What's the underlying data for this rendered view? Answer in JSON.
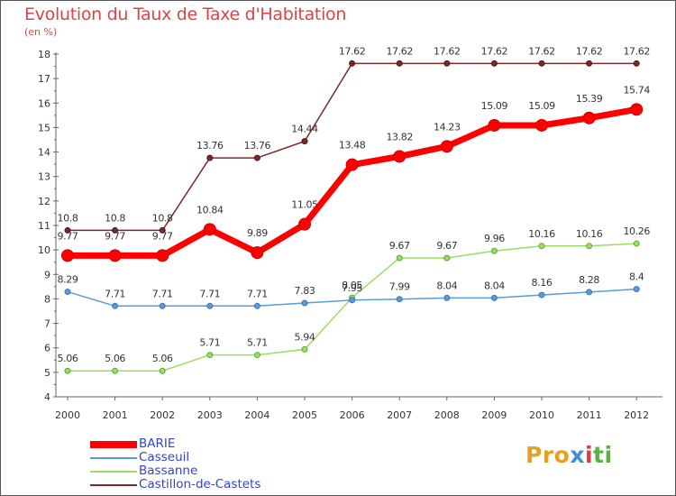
{
  "header": {
    "title": "Evolution du Taux de Taxe d'Habitation",
    "subtitle": "(en %)"
  },
  "logo": {
    "text": "Proxiti",
    "parts": [
      "Pro",
      "x",
      "i",
      "ti"
    ]
  },
  "chart_data": {
    "type": "line",
    "title": "Evolution du Taux de Taxe d'Habitation",
    "ylabel": "(en %)",
    "xlabel": "",
    "x": [
      "2000",
      "2001",
      "2002",
      "2003",
      "2004",
      "2005",
      "2006",
      "2007",
      "2008",
      "2009",
      "2010",
      "2011",
      "2012"
    ],
    "ylim": [
      4,
      18
    ],
    "yticks": [
      "4",
      "5",
      "6",
      "7",
      "8",
      "9",
      "10",
      "11",
      "12",
      "13",
      "14",
      "15",
      "16",
      "17",
      "18"
    ],
    "grid": false,
    "legend": "bottom-left",
    "series": [
      {
        "name": "BARIE",
        "color": "#ff0000",
        "values": [
          9.77,
          9.77,
          9.77,
          10.84,
          9.89,
          11.05,
          13.48,
          13.82,
          14.23,
          15.09,
          15.09,
          15.39,
          15.74
        ],
        "labels": [
          "9.77",
          "9.77",
          "9.77",
          "10.84",
          "9.89",
          "11.05",
          "13.48",
          "13.82",
          "14.23",
          "15.09",
          "15.09",
          "15.39",
          "15.74"
        ]
      },
      {
        "name": "Casseuil",
        "color": "#5b9bd5",
        "values": [
          8.29,
          7.71,
          7.71,
          7.71,
          7.71,
          7.83,
          7.95,
          7.99,
          8.04,
          8.04,
          8.16,
          8.28,
          8.4
        ],
        "labels": [
          "8.29",
          "7.71",
          "7.71",
          "7.71",
          "7.71",
          "7.83",
          "7.95",
          "7.99",
          "8.04",
          "8.04",
          "8.16",
          "8.28",
          "8.4"
        ]
      },
      {
        "name": "Bassanne",
        "color": "#99dd66",
        "values": [
          5.06,
          5.06,
          5.06,
          5.71,
          5.71,
          5.94,
          8.05,
          9.67,
          9.67,
          9.96,
          10.16,
          10.16,
          10.26
        ],
        "labels": [
          "5.06",
          "5.06",
          "5.06",
          "5.71",
          "5.71",
          "5.94",
          "8.05",
          "9.67",
          "9.67",
          "9.96",
          "10.16",
          "10.16",
          "10.26"
        ]
      },
      {
        "name": "Castillon-de-Castets",
        "color": "#7a2a2a",
        "values": [
          10.8,
          10.8,
          10.8,
          13.76,
          13.76,
          14.44,
          17.62,
          17.62,
          17.62,
          17.62,
          17.62,
          17.62,
          17.62
        ],
        "labels": [
          "10.8",
          "10.8",
          "10.8",
          "13.76",
          "13.76",
          "14.44",
          "17.62",
          "17.62",
          "17.62",
          "17.62",
          "17.62",
          "17.62",
          "17.62"
        ]
      }
    ]
  }
}
